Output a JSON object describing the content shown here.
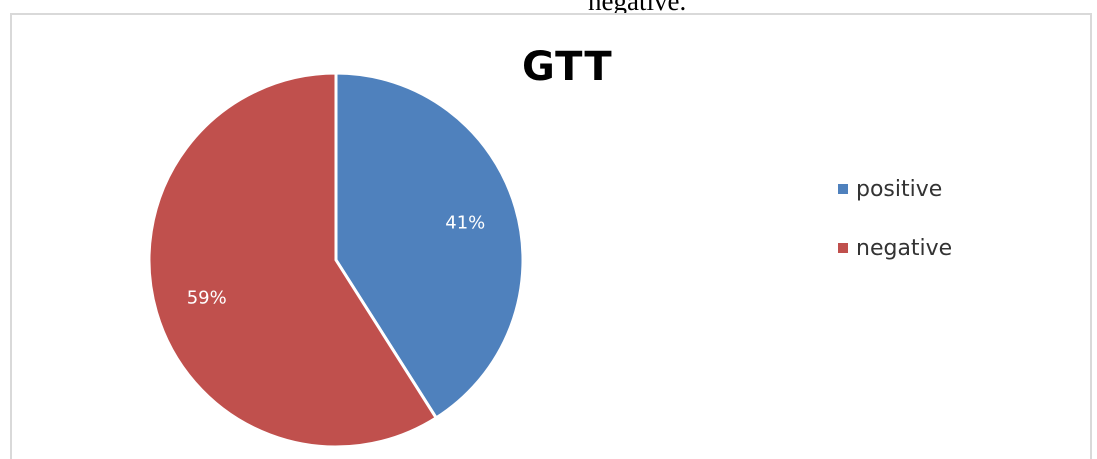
{
  "caption_fragment": "negative.",
  "chart_data": {
    "type": "pie",
    "title": "GTT",
    "categories": [
      "positive",
      "negative"
    ],
    "values": [
      41,
      59
    ],
    "data_labels": [
      "41%",
      "59%"
    ],
    "colors": [
      "#4f81bd",
      "#c0504d"
    ],
    "legend_position": "right"
  }
}
